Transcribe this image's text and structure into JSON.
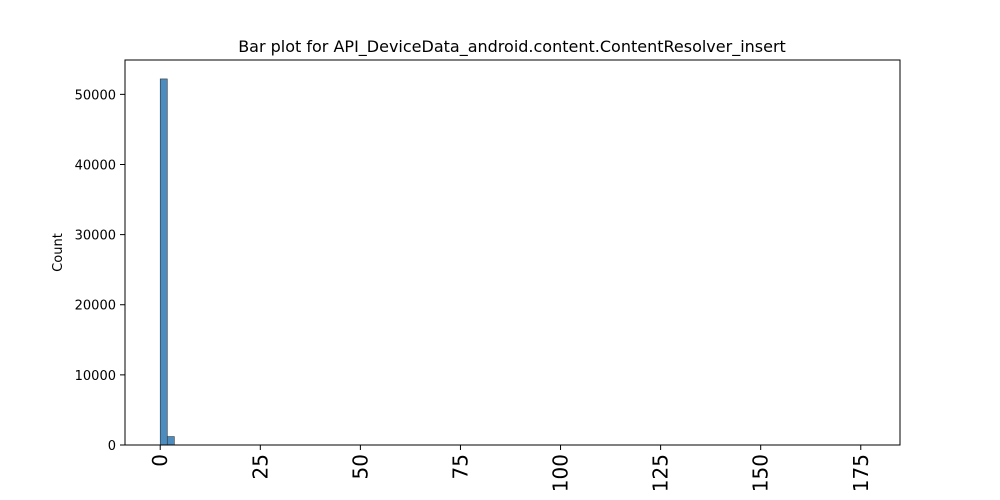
{
  "chart_data": {
    "type": "bar",
    "title": "Bar plot for API_DeviceData_android.content.ContentResolver_insert",
    "xlabel": "",
    "ylabel": "Count",
    "xlim": [
      -8.8,
      184.8
    ],
    "ylim": [
      0,
      54900
    ],
    "x_ticks": [
      0,
      25,
      50,
      75,
      100,
      125,
      150,
      175
    ],
    "y_ticks": [
      0,
      10000,
      20000,
      30000,
      40000,
      50000
    ],
    "bin_width": 1.76,
    "bars": [
      {
        "x_start": 0,
        "x_end": 1.76,
        "value": 52200
      },
      {
        "x_start": 1.76,
        "x_end": 3.52,
        "value": 1200
      }
    ],
    "bar_color": "#4c8cbf",
    "grid": false,
    "legend": "none"
  }
}
